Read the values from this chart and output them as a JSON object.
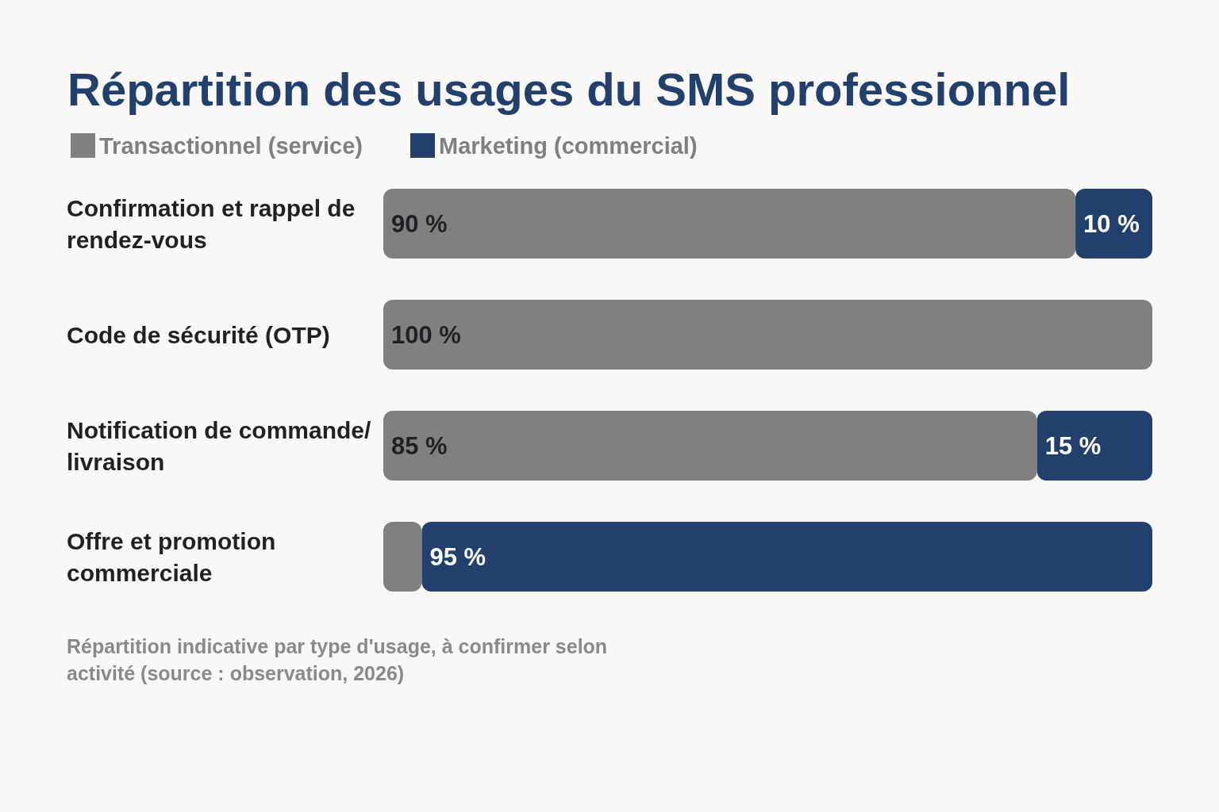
{
  "chart_data": {
    "type": "bar",
    "orientation": "horizontal",
    "stacked": true,
    "title": "Répartition des usages du SMS professionnel",
    "categories": [
      "Confirmation et rappel de rendez-vous",
      "Code de sécurité (OTP)",
      "Notification de commande/livraison",
      "Offre et promotion commerciale"
    ],
    "series": [
      {
        "name": "Transactionnel (service)",
        "color": "#808080",
        "values": [
          90,
          100,
          85,
          5
        ],
        "value_labels": [
          "90 %",
          "100 %",
          "85 %",
          null
        ]
      },
      {
        "name": "Marketing (commercial)",
        "color": "#22406e",
        "values": [
          10,
          0,
          15,
          95
        ],
        "value_labels": [
          "10 %",
          null,
          "15 %",
          "95 %"
        ]
      }
    ],
    "xlim": [
      0,
      100
    ],
    "tick_labels": "y",
    "grid": false,
    "legend": "top left",
    "annotations": [
      "Répartition indicative par type d'usage, à confirmer selon activité (source : observation, 2026)"
    ]
  }
}
